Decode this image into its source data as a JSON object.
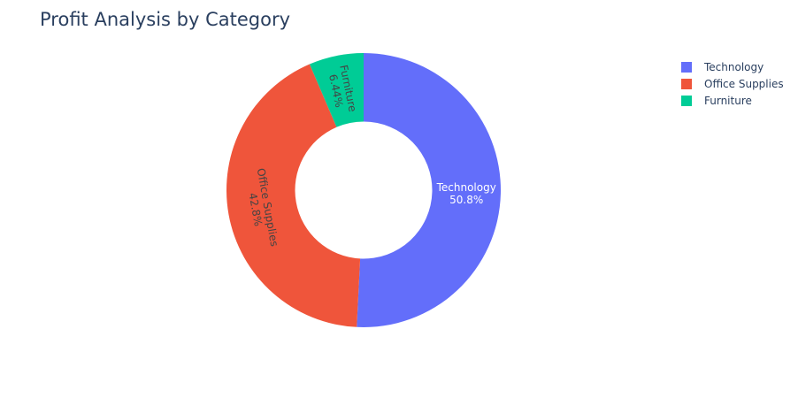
{
  "chart_data": {
    "type": "pie",
    "title": "Profit Analysis by Category",
    "hole": 0.5,
    "direction": "clockwise",
    "legend_position": "top-right",
    "slices": [
      {
        "label": "Technology",
        "percent_label": "50.8%",
        "value": 50.8,
        "color": "#636efa",
        "text_color": "#ffffff"
      },
      {
        "label": "Office Supplies",
        "percent_label": "42.8%",
        "value": 42.76,
        "color": "#ef553b",
        "text_color": "#444444"
      },
      {
        "label": "Furniture",
        "percent_label": "6.44%",
        "value": 6.44,
        "color": "#00cc96",
        "text_color": "#444444"
      }
    ],
    "legend": [
      {
        "label": "Technology",
        "color": "#636efa"
      },
      {
        "label": "Office Supplies",
        "color": "#ef553b"
      },
      {
        "label": "Furniture",
        "color": "#00cc96"
      }
    ]
  }
}
